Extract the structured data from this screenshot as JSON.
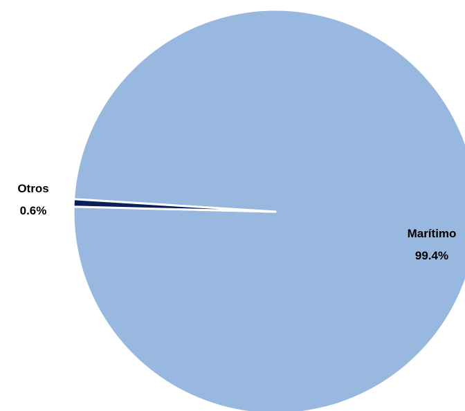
{
  "chart_data": {
    "type": "pie",
    "title": "",
    "categories": [
      "Marítimo",
      "Otros"
    ],
    "values": [
      99.4,
      0.6
    ],
    "value_labels": [
      "99.4%",
      "0.6%"
    ],
    "colors": [
      "#98b8e0",
      "#0b1f5c"
    ],
    "exploded": [
      "Otros"
    ],
    "legend": "none"
  }
}
